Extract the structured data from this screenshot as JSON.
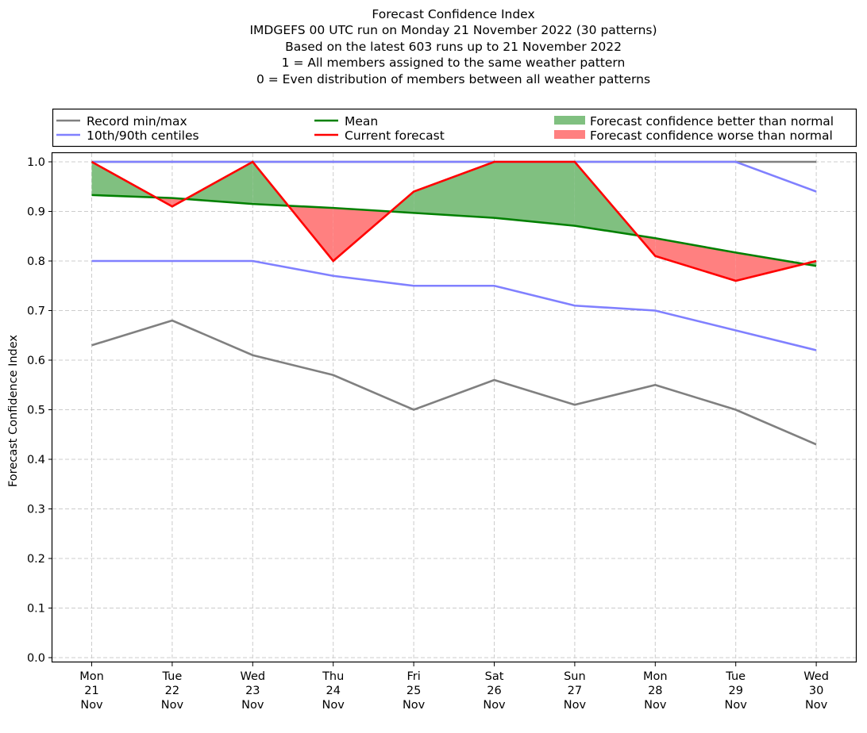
{
  "chart_data": {
    "type": "line",
    "title_lines": [
      "Forecast Confidence Index",
      "IMDGEFS 00 UTC run on Monday 21 November 2022 (30 patterns)",
      "Based on the latest 603 runs up to 21 November 2022",
      "1 = All members assigned to the same weather pattern",
      "0 = Even distribution of members between all weather patterns"
    ],
    "xlabel": "",
    "ylabel": "Forecast Confidence Index",
    "ylim": [
      0,
      1
    ],
    "yticks": [
      "0.0",
      "0.1",
      "0.2",
      "0.3",
      "0.4",
      "0.5",
      "0.6",
      "0.7",
      "0.8",
      "0.9",
      "1.0"
    ],
    "grid": true,
    "legend_placement": "top, above plot (3 columns)",
    "categories": [
      {
        "dow": "Mon",
        "day": "21",
        "mon": "Nov"
      },
      {
        "dow": "Tue",
        "day": "22",
        "mon": "Nov"
      },
      {
        "dow": "Wed",
        "day": "23",
        "mon": "Nov"
      },
      {
        "dow": "Thu",
        "day": "24",
        "mon": "Nov"
      },
      {
        "dow": "Fri",
        "day": "25",
        "mon": "Nov"
      },
      {
        "dow": "Sat",
        "day": "26",
        "mon": "Nov"
      },
      {
        "dow": "Sun",
        "day": "27",
        "mon": "Nov"
      },
      {
        "dow": "Mon",
        "day": "28",
        "mon": "Nov"
      },
      {
        "dow": "Tue",
        "day": "29",
        "mon": "Nov"
      },
      {
        "dow": "Wed",
        "day": "30",
        "mon": "Nov"
      }
    ],
    "series": [
      {
        "name": "Record max",
        "key": "record_max",
        "color": "#808080",
        "values": [
          1.0,
          1.0,
          1.0,
          1.0,
          1.0,
          1.0,
          1.0,
          1.0,
          1.0,
          1.0
        ]
      },
      {
        "name": "Record min",
        "key": "record_min",
        "color": "#808080",
        "values": [
          0.63,
          0.68,
          0.61,
          0.57,
          0.5,
          0.56,
          0.51,
          0.55,
          0.5,
          0.43
        ]
      },
      {
        "name": "90th centile",
        "key": "p90",
        "color": "#8080ff",
        "values": [
          1.0,
          1.0,
          1.0,
          1.0,
          1.0,
          1.0,
          1.0,
          1.0,
          1.0,
          0.94
        ]
      },
      {
        "name": "10th centile",
        "key": "p10",
        "color": "#8080ff",
        "values": [
          0.8,
          0.8,
          0.8,
          0.77,
          0.75,
          0.75,
          0.71,
          0.7,
          0.66,
          0.62
        ]
      },
      {
        "name": "Mean",
        "key": "mean",
        "color": "#008000",
        "values": [
          0.933,
          0.927,
          0.915,
          0.907,
          0.897,
          0.887,
          0.871,
          0.846,
          0.817,
          0.79
        ]
      },
      {
        "name": "Current forecast",
        "key": "current",
        "color": "#ff0000",
        "values": [
          1.0,
          0.91,
          1.0,
          0.8,
          0.94,
          1.0,
          1.0,
          0.81,
          0.76,
          0.8
        ]
      }
    ],
    "fills": {
      "better": {
        "label": "Forecast confidence better than normal",
        "color": "#80c080"
      },
      "worse": {
        "label": "Forecast confidence worse than normal",
        "color": "#ff8080"
      }
    },
    "legend": [
      {
        "label": "Record min/max",
        "type": "line",
        "color": "#808080"
      },
      {
        "label": "10th/90th centiles",
        "type": "line",
        "color": "#8080ff"
      },
      {
        "label": "Mean",
        "type": "line",
        "color": "#008000"
      },
      {
        "label": "Current forecast",
        "type": "line",
        "color": "#ff0000"
      },
      {
        "label": "Forecast confidence better than normal",
        "type": "patch",
        "color": "#80c080"
      },
      {
        "label": "Forecast confidence worse than normal",
        "type": "patch",
        "color": "#ff8080"
      }
    ]
  }
}
